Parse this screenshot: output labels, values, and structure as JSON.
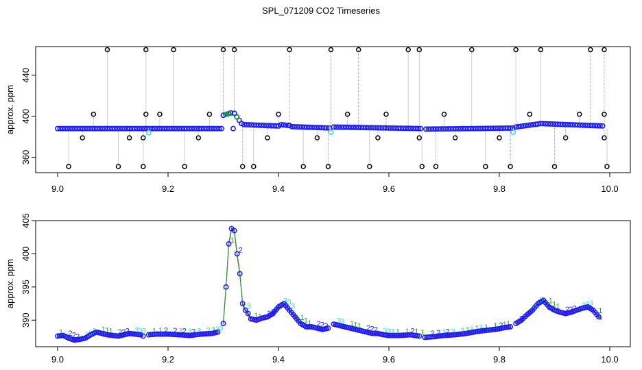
{
  "figure": {
    "title": "SPL_071209  CO2 Timeseries"
  },
  "colors": {
    "black": "#000000",
    "grey_line": "#9a9a9a",
    "blue": "#1a1aff",
    "cyan": "#33dddd",
    "green": "#22aa22",
    "red": "#ee2222",
    "purple": "#aa22cc"
  },
  "chart_data": [
    {
      "type": "scatter",
      "title": "",
      "xlabel": "",
      "ylabel": "approx. ppm",
      "xlim": [
        9.0,
        10.0
      ],
      "ylim": [
        345,
        468
      ],
      "xticks": [
        9.0,
        9.2,
        9.4,
        9.6,
        9.8,
        10.0
      ],
      "xtick_labels": [
        "9.0",
        "9.2",
        "9.4",
        "9.6",
        "9.8",
        "10.0"
      ],
      "yticks": [
        360,
        400,
        440
      ],
      "ytick_labels": [
        "360",
        "400",
        "440"
      ],
      "grid": false,
      "baseline_segments": [
        {
          "x": [
            9.0,
            9.299
          ],
          "y": [
            388.0,
            388.0
          ]
        },
        {
          "x": [
            9.3,
            9.318
          ],
          "y": [
            401.0,
            404.0
          ]
        },
        {
          "x": [
            9.32,
            9.333
          ],
          "y": [
            403.0,
            393.0
          ]
        },
        {
          "x": [
            9.333,
            9.4
          ],
          "y": [
            392.0,
            390.5
          ]
        },
        {
          "x": [
            9.4,
            9.42
          ],
          "y": [
            392.0,
            391.0
          ]
        },
        {
          "x": [
            9.42,
            9.495
          ],
          "y": [
            390.0,
            388.5
          ]
        },
        {
          "x": [
            9.5,
            9.66
          ],
          "y": [
            389.5,
            388.0
          ]
        },
        {
          "x": [
            9.667,
            9.825
          ],
          "y": [
            387.5,
            388.5
          ]
        },
        {
          "x": [
            9.83,
            9.87
          ],
          "y": [
            389.5,
            392.5
          ]
        },
        {
          "x": [
            9.87,
            9.99
          ],
          "y": [
            393.0,
            390.5
          ]
        }
      ],
      "spikes_high": [
        9.09,
        9.16,
        9.21,
        9.3,
        9.32,
        9.42,
        9.495,
        9.545,
        9.635,
        9.655,
        9.75,
        9.83,
        9.875,
        9.965,
        9.99
      ],
      "spikes_low": [
        9.02,
        9.11,
        9.155,
        9.23,
        9.335,
        9.355,
        9.445,
        9.49,
        9.565,
        9.66,
        9.685,
        9.775,
        9.82,
        9.9,
        9.995
      ],
      "spikes_mid_high": [
        9.065,
        9.16,
        9.185,
        9.275,
        9.4,
        9.525,
        9.595,
        9.7,
        9.855,
        9.945,
        9.99
      ],
      "spikes_mid_low": [
        9.045,
        9.13,
        9.155,
        9.255,
        9.38,
        9.47,
        9.58,
        9.655,
        9.72,
        9.8,
        9.92,
        9.99
      ],
      "high_value": 465,
      "low_value": 351,
      "mid_high_value": 402,
      "mid_low_value": 379
    },
    {
      "type": "scatter",
      "title": "",
      "xlabel": "",
      "ylabel": "approx. ppm",
      "xlim": [
        9.0,
        10.0
      ],
      "ylim": [
        386.0,
        405.0
      ],
      "xticks": [
        9.0,
        9.2,
        9.4,
        9.6,
        9.8,
        10.0
      ],
      "xtick_labels": [
        "9.0",
        "9.2",
        "9.4",
        "9.6",
        "9.8",
        "10.0"
      ],
      "yticks": [
        390,
        395,
        400,
        405
      ],
      "ytick_labels": [
        "390",
        "395",
        "400",
        "405"
      ],
      "grid": false,
      "marker_labels": [
        "1",
        "2",
        "3"
      ],
      "series": [
        {
          "x": [
            9.0,
            9.01,
            9.02,
            9.03,
            9.04,
            9.05,
            9.06,
            9.07,
            9.08,
            9.09,
            9.1,
            9.11,
            9.12,
            9.13,
            9.14,
            9.15,
            9.155,
            9.165,
            9.18,
            9.2,
            9.22,
            9.24,
            9.26,
            9.28,
            9.29,
            9.3,
            9.305,
            9.31,
            9.315,
            9.32,
            9.325,
            9.33,
            9.335,
            9.34,
            9.345,
            9.35,
            9.36,
            9.37,
            9.38,
            9.39,
            9.4,
            9.41,
            9.42,
            9.43,
            9.44,
            9.45,
            9.46,
            9.47,
            9.48,
            9.49,
            9.5,
            9.51,
            9.52,
            9.53,
            9.54,
            9.55,
            9.56,
            9.57,
            9.58,
            9.59,
            9.6,
            9.62,
            9.64,
            9.655,
            9.665,
            9.68,
            9.7,
            9.72,
            9.74,
            9.76,
            9.78,
            9.8,
            9.81,
            9.82,
            9.83,
            9.84,
            9.85,
            9.86,
            9.87,
            9.88,
            9.89,
            9.9,
            9.91,
            9.92,
            9.93,
            9.94,
            9.95,
            9.96,
            9.97,
            9.98,
            9.985
          ],
          "y": [
            387.6,
            387.7,
            387.3,
            387.0,
            387.1,
            387.3,
            387.8,
            388.2,
            388.0,
            387.8,
            387.7,
            387.6,
            387.8,
            388.0,
            387.9,
            387.8,
            387.6,
            387.8,
            387.9,
            387.9,
            387.8,
            387.7,
            387.9,
            388.0,
            388.2,
            389.5,
            395.0,
            401.5,
            403.8,
            403.5,
            400.0,
            397.0,
            392.5,
            391.5,
            391.0,
            390.2,
            390.0,
            390.3,
            390.5,
            391.0,
            392.0,
            392.5,
            391.5,
            390.5,
            389.5,
            389.0,
            389.0,
            388.8,
            388.6,
            388.8,
            389.4,
            389.2,
            389.0,
            388.8,
            388.6,
            388.4,
            388.2,
            388.0,
            388.0,
            387.8,
            387.7,
            387.7,
            387.8,
            387.6,
            387.4,
            387.5,
            387.7,
            387.8,
            388.0,
            388.3,
            388.5,
            388.7,
            388.9,
            389.0,
            389.5,
            390.0,
            390.8,
            391.5,
            392.5,
            393.0,
            392.0,
            391.5,
            391.2,
            391.0,
            391.2,
            391.5,
            391.8,
            392.0,
            391.5,
            390.5,
            390.2
          ],
          "gaps_after": [
            9.155,
            9.29,
            9.49,
            9.655,
            9.82
          ]
        }
      ]
    }
  ]
}
